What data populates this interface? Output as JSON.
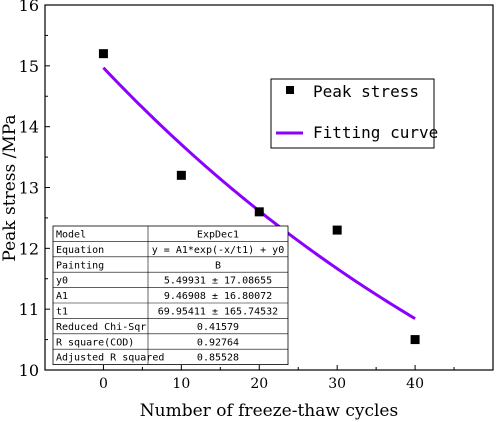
{
  "chart_data": {
    "type": "scatter",
    "xlabel": "Number of freeze-thaw cycles",
    "ylabel": "Peak stress /MPa",
    "xlim": [
      -7.5,
      50
    ],
    "ylim": [
      10,
      16
    ],
    "xticks": [
      "0",
      "10",
      "20",
      "30",
      "40"
    ],
    "yticks": [
      "10",
      "11",
      "12",
      "13",
      "14",
      "15",
      "16"
    ],
    "grid": false,
    "legend_position": "top-right",
    "series": [
      {
        "name": "Peak stress",
        "type": "scatter",
        "marker": "square",
        "color": "#000000",
        "x": [
          0,
          10,
          20,
          30,
          40
        ],
        "y": [
          15.2,
          13.2,
          12.6,
          12.3,
          10.5
        ]
      },
      {
        "name": "Fitting curve",
        "type": "line",
        "color": "#8b00ff",
        "model": {
          "y0": 5.49931,
          "A1": 9.46908,
          "t1": 69.95411
        },
        "x_range": [
          0,
          40
        ]
      }
    ],
    "fit_table": {
      "rows": [
        [
          "Model",
          "ExpDec1"
        ],
        [
          "Equation",
          "y = A1*exp(-x/t1) + y0"
        ],
        [
          "Painting",
          "B"
        ],
        [
          "y0",
          "5.49931 ± 17.08655"
        ],
        [
          "A1",
          "9.46908 ± 16.80072"
        ],
        [
          "t1",
          "69.95411 ± 165.74532"
        ],
        [
          "Reduced Chi-Sqr",
          "0.41579"
        ],
        [
          "R square(COD)",
          "0.92764"
        ],
        [
          "Adjusted R squared",
          "0.85528"
        ]
      ]
    }
  }
}
